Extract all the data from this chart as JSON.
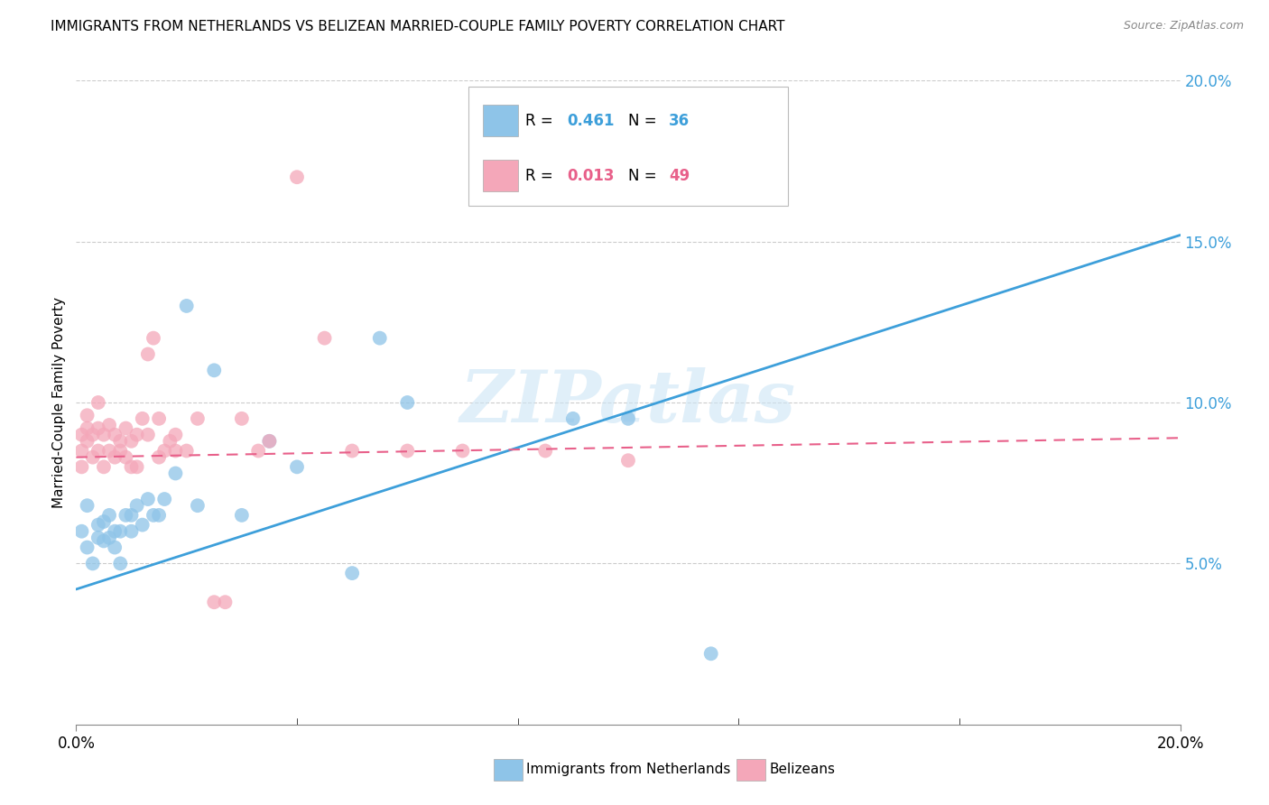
{
  "title": "IMMIGRANTS FROM NETHERLANDS VS BELIZEAN MARRIED-COUPLE FAMILY POVERTY CORRELATION CHART",
  "source": "Source: ZipAtlas.com",
  "ylabel": "Married-Couple Family Poverty",
  "xlim": [
    0.0,
    0.2
  ],
  "ylim": [
    0.0,
    0.2
  ],
  "ytick_vals": [
    0.05,
    0.1,
    0.15,
    0.2
  ],
  "ytick_labels": [
    "5.0%",
    "10.0%",
    "15.0%",
    "20.0%"
  ],
  "xtick_vals": [
    0.0,
    0.2
  ],
  "xtick_labels": [
    "0.0%",
    "20.0%"
  ],
  "legend_r1": "0.461",
  "legend_n1": "36",
  "legend_r2": "0.013",
  "legend_n2": "49",
  "legend_label1": "Immigrants from Netherlands",
  "legend_label2": "Belizeans",
  "color_blue": "#8ec4e8",
  "color_pink": "#f4a7b9",
  "line_blue": "#3d9fda",
  "line_pink": "#e8608a",
  "tick_color": "#3d9fda",
  "watermark": "ZIPatlas",
  "nl_line_x": [
    0.0,
    0.2
  ],
  "nl_line_y": [
    0.042,
    0.152
  ],
  "bz_line_x": [
    0.0,
    0.2
  ],
  "bz_line_y": [
    0.083,
    0.089
  ],
  "nl_x": [
    0.001,
    0.002,
    0.002,
    0.003,
    0.004,
    0.004,
    0.005,
    0.005,
    0.006,
    0.006,
    0.007,
    0.007,
    0.008,
    0.008,
    0.009,
    0.01,
    0.01,
    0.011,
    0.012,
    0.013,
    0.014,
    0.015,
    0.016,
    0.018,
    0.02,
    0.022,
    0.025,
    0.03,
    0.035,
    0.04,
    0.05,
    0.055,
    0.06,
    0.09,
    0.1,
    0.115
  ],
  "nl_y": [
    0.06,
    0.055,
    0.068,
    0.05,
    0.062,
    0.058,
    0.057,
    0.063,
    0.058,
    0.065,
    0.06,
    0.055,
    0.06,
    0.05,
    0.065,
    0.065,
    0.06,
    0.068,
    0.062,
    0.07,
    0.065,
    0.065,
    0.07,
    0.078,
    0.13,
    0.068,
    0.11,
    0.065,
    0.088,
    0.08,
    0.047,
    0.12,
    0.1,
    0.095,
    0.095,
    0.022
  ],
  "bz_x": [
    0.001,
    0.001,
    0.001,
    0.002,
    0.002,
    0.002,
    0.003,
    0.003,
    0.004,
    0.004,
    0.004,
    0.005,
    0.005,
    0.006,
    0.006,
    0.007,
    0.007,
    0.008,
    0.008,
    0.009,
    0.009,
    0.01,
    0.01,
    0.011,
    0.011,
    0.012,
    0.013,
    0.013,
    0.014,
    0.015,
    0.015,
    0.016,
    0.017,
    0.018,
    0.018,
    0.02,
    0.022,
    0.025,
    0.027,
    0.03,
    0.033,
    0.035,
    0.04,
    0.045,
    0.05,
    0.06,
    0.07,
    0.085,
    0.1
  ],
  "bz_y": [
    0.08,
    0.085,
    0.09,
    0.092,
    0.096,
    0.088,
    0.083,
    0.09,
    0.085,
    0.092,
    0.1,
    0.08,
    0.09,
    0.085,
    0.093,
    0.083,
    0.09,
    0.085,
    0.088,
    0.083,
    0.092,
    0.08,
    0.088,
    0.09,
    0.08,
    0.095,
    0.115,
    0.09,
    0.12,
    0.095,
    0.083,
    0.085,
    0.088,
    0.085,
    0.09,
    0.085,
    0.095,
    0.038,
    0.038,
    0.095,
    0.085,
    0.088,
    0.17,
    0.12,
    0.085,
    0.085,
    0.085,
    0.085,
    0.082
  ]
}
